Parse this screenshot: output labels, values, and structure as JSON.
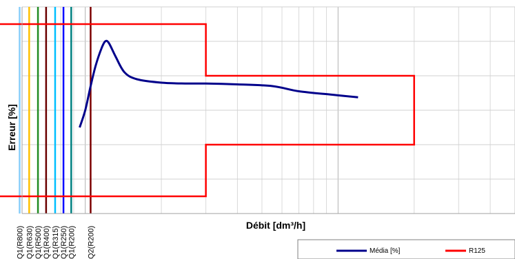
{
  "chart_data": {
    "type": "line",
    "title": "",
    "xlabel": "Débit [dm³/h]",
    "ylabel": "Erreur [%]",
    "x_scale": "log",
    "grid": true,
    "legend_placement": "bottom-right",
    "series": [
      {
        "name": "Média [%]",
        "color": "#00008b",
        "values": [
          [
            0.95,
            -1.0
          ],
          [
            1.0,
            0.0
          ],
          [
            1.05,
            1.4
          ],
          [
            1.1,
            2.6
          ],
          [
            1.16,
            3.6
          ],
          [
            1.2,
            4.0
          ],
          [
            1.24,
            3.9
          ],
          [
            1.32,
            3.1
          ],
          [
            1.43,
            2.2
          ],
          [
            1.6,
            1.8
          ],
          [
            2.0,
            1.6
          ],
          [
            2.5,
            1.55
          ],
          [
            3.0,
            1.55
          ],
          [
            4.0,
            1.5
          ],
          [
            5.5,
            1.4
          ],
          [
            7.0,
            1.1
          ],
          [
            9.5,
            0.9
          ],
          [
            12.0,
            0.75
          ]
        ]
      },
      {
        "name": "R125",
        "color": "#ff0000",
        "upper": [
          [
            0.35,
            5.0
          ],
          [
            3.0,
            5.0
          ],
          [
            3.0,
            2.0
          ],
          [
            20.0,
            2.0
          ],
          [
            20.0,
            -2.0
          ],
          [
            3.0,
            -2.0
          ],
          [
            3.0,
            -5.0
          ],
          [
            0.35,
            -5.0
          ]
        ]
      }
    ],
    "vertical_markers": [
      {
        "label": "Q1(R800)",
        "x": 0.55,
        "color": "#87cefa"
      },
      {
        "label": "Q1(R630)",
        "x": 0.6,
        "color": "#ffc000"
      },
      {
        "label": "Q1(R500)",
        "x": 0.65,
        "color": "#228b22"
      },
      {
        "label": "Q1(R400)",
        "x": 0.7,
        "color": "#6b0000"
      },
      {
        "label": "Q1(R315)",
        "x": 0.76,
        "color": "#00bfff"
      },
      {
        "label": "Q1(R250)",
        "x": 0.82,
        "color": "#0000ff"
      },
      {
        "label": "Q1(R200)",
        "x": 0.88,
        "color": "#008080"
      },
      {
        "label": "Q2(R200)",
        "x": 1.05,
        "color": "#7b0000"
      }
    ],
    "xlim_log10": [
      -0.25,
      1.7
    ],
    "ylim": [
      -6,
      6
    ]
  },
  "legend": {
    "items": [
      {
        "label": "Média [%]",
        "color": "#00008b"
      },
      {
        "label": "R125",
        "color": "#ff0000"
      }
    ]
  }
}
